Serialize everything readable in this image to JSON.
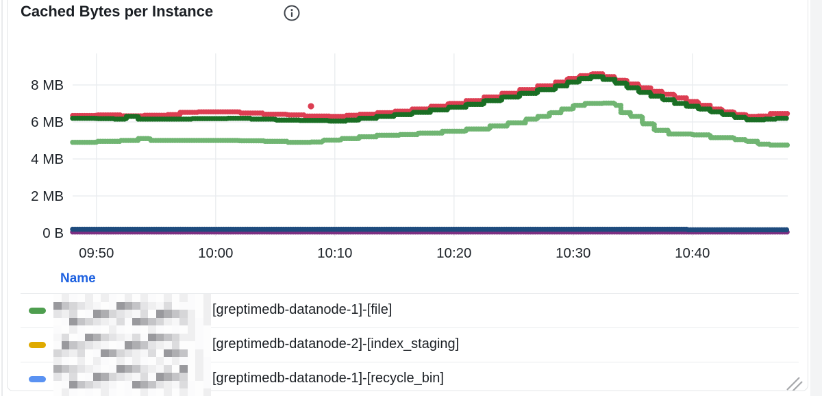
{
  "panel": {
    "title": "Cached Bytes per Instance"
  },
  "chart_data": {
    "type": "line",
    "title": "Cached Bytes per Instance",
    "interpolation": "step-after-dotted",
    "grid": true,
    "x": {
      "start_time": "09:48",
      "end_time": "10:48",
      "unit": "minutes from 09:48",
      "ticks": [
        {
          "label": "09:50",
          "t": 2
        },
        {
          "label": "10:00",
          "t": 12
        },
        {
          "label": "10:10",
          "t": 22
        },
        {
          "label": "10:20",
          "t": 32
        },
        {
          "label": "10:30",
          "t": 42
        },
        {
          "label": "10:40",
          "t": 52
        }
      ]
    },
    "y": {
      "unit": "MB",
      "ylim": [
        0,
        9.7
      ],
      "ticks": [
        {
          "label": "0 B",
          "v": 0
        },
        {
          "label": "2 MB",
          "v": 2
        },
        {
          "label": "4 MB",
          "v": 4
        },
        {
          "label": "6 MB",
          "v": 6
        },
        {
          "label": "8 MB",
          "v": 8
        }
      ]
    },
    "series": [
      {
        "id": "red",
        "color": "#dc3e52",
        "points": [
          [
            0,
            6.35
          ],
          [
            2,
            6.38
          ],
          [
            4,
            6.33
          ],
          [
            6,
            6.36
          ],
          [
            8,
            6.4
          ],
          [
            9,
            6.52
          ],
          [
            10.5,
            6.55
          ],
          [
            13,
            6.55
          ],
          [
            14,
            6.48
          ],
          [
            16,
            6.42
          ],
          [
            18,
            6.38
          ],
          [
            19.5,
            6.32
          ],
          [
            21.5,
            6.3
          ],
          [
            23,
            6.36
          ],
          [
            24,
            6.42
          ],
          [
            25.5,
            6.5
          ],
          [
            27,
            6.58
          ],
          [
            28.5,
            6.7
          ],
          [
            30,
            6.85
          ],
          [
            31.5,
            7.0
          ],
          [
            33,
            7.15
          ],
          [
            34.5,
            7.35
          ],
          [
            36,
            7.55
          ],
          [
            37.5,
            7.75
          ],
          [
            39,
            7.95
          ],
          [
            40.5,
            8.15
          ],
          [
            41.5,
            8.35
          ],
          [
            42.5,
            8.5
          ],
          [
            43.5,
            8.6
          ],
          [
            44.5,
            8.45
          ],
          [
            45.5,
            8.25
          ],
          [
            46.5,
            8.05
          ],
          [
            47.5,
            7.85
          ],
          [
            48.5,
            7.65
          ],
          [
            49.5,
            7.5
          ],
          [
            50.5,
            7.3
          ],
          [
            51.5,
            7.1
          ],
          [
            52.5,
            6.9
          ],
          [
            53.5,
            6.7
          ],
          [
            54.5,
            6.55
          ],
          [
            55.5,
            6.4
          ],
          [
            56.5,
            6.3
          ],
          [
            57.5,
            6.32
          ],
          [
            58.5,
            6.45
          ],
          [
            60,
            6.5
          ]
        ]
      },
      {
        "id": "dark-green",
        "color": "#1a6e24",
        "points": [
          [
            0,
            6.2
          ],
          [
            2,
            6.18
          ],
          [
            3.5,
            6.15
          ],
          [
            4.5,
            6.3
          ],
          [
            5.5,
            6.15
          ],
          [
            8,
            6.15
          ],
          [
            10,
            6.18
          ],
          [
            13,
            6.2
          ],
          [
            15,
            6.15
          ],
          [
            17,
            6.1
          ],
          [
            19,
            6.08
          ],
          [
            21.5,
            6.05
          ],
          [
            23,
            6.1
          ],
          [
            24,
            6.2
          ],
          [
            25.5,
            6.3
          ],
          [
            27,
            6.4
          ],
          [
            28.5,
            6.52
          ],
          [
            30,
            6.65
          ],
          [
            31.5,
            6.8
          ],
          [
            33,
            6.95
          ],
          [
            34.5,
            7.15
          ],
          [
            36,
            7.35
          ],
          [
            37.5,
            7.55
          ],
          [
            39,
            7.75
          ],
          [
            40.5,
            7.95
          ],
          [
            41.5,
            8.15
          ],
          [
            42.5,
            8.35
          ],
          [
            43.5,
            8.45
          ],
          [
            44.5,
            8.3
          ],
          [
            45.5,
            8.1
          ],
          [
            46.5,
            7.85
          ],
          [
            47.5,
            7.6
          ],
          [
            48.5,
            7.4
          ],
          [
            49.5,
            7.2
          ],
          [
            50.5,
            7.0
          ],
          [
            51.5,
            6.85
          ],
          [
            52.5,
            6.7
          ],
          [
            53.5,
            6.55
          ],
          [
            54.5,
            6.4
          ],
          [
            55.5,
            6.25
          ],
          [
            56.5,
            6.12
          ],
          [
            58,
            6.15
          ],
          [
            59,
            6.2
          ],
          [
            60,
            6.2
          ]
        ]
      },
      {
        "id": "light-green",
        "color": "#70b572",
        "points": [
          [
            0,
            4.9
          ],
          [
            2,
            4.95
          ],
          [
            4,
            5.0
          ],
          [
            5.5,
            5.1
          ],
          [
            6.5,
            5.0
          ],
          [
            9,
            5.0
          ],
          [
            12,
            5.0
          ],
          [
            14,
            4.98
          ],
          [
            16,
            4.95
          ],
          [
            18,
            4.9
          ],
          [
            20,
            4.92
          ],
          [
            21,
            5.02
          ],
          [
            22.5,
            5.1
          ],
          [
            24,
            5.2
          ],
          [
            25.5,
            5.28
          ],
          [
            27.5,
            5.32
          ],
          [
            29,
            5.4
          ],
          [
            31,
            5.5
          ],
          [
            33,
            5.62
          ],
          [
            35,
            5.78
          ],
          [
            36.5,
            5.95
          ],
          [
            38,
            6.15
          ],
          [
            39,
            6.3
          ],
          [
            40,
            6.5
          ],
          [
            41,
            6.7
          ],
          [
            42,
            6.9
          ],
          [
            43,
            7.0
          ],
          [
            44.5,
            7.02
          ],
          [
            45.5,
            6.9
          ],
          [
            46,
            6.5
          ],
          [
            46.8,
            6.3
          ],
          [
            47.8,
            5.9
          ],
          [
            48.8,
            5.55
          ],
          [
            50,
            5.35
          ],
          [
            52,
            5.3
          ],
          [
            53.5,
            5.15
          ],
          [
            55.5,
            5.05
          ],
          [
            56.5,
            4.95
          ],
          [
            57.5,
            4.8
          ],
          [
            58.5,
            4.75
          ],
          [
            60,
            4.78
          ]
        ]
      },
      {
        "id": "purple",
        "color": "#7c2f82",
        "points": [
          [
            0,
            0.05
          ],
          [
            60,
            0.05
          ]
        ]
      },
      {
        "id": "navy-blue",
        "color": "#1e4b7d",
        "points": [
          [
            0,
            0.2
          ],
          [
            51.5,
            0.2
          ],
          [
            51.6,
            0.17
          ],
          [
            60,
            0.17
          ]
        ]
      }
    ],
    "outlier_point": {
      "series": "red",
      "t": 20,
      "v": 6.85,
      "color": "#dc3e52"
    }
  },
  "legend": {
    "header": "Name",
    "rows": [
      {
        "swatch_color": "#4e9e4f",
        "name_redacted": true,
        "label": "[greptimedb-datanode-1]-[file]"
      },
      {
        "swatch_color": "#dfaa00",
        "name_redacted": true,
        "label": "[greptimedb-datanode-2]-[index_staging]"
      },
      {
        "swatch_color": "#5a92f2",
        "name_redacted": true,
        "label": "[greptimedb-datanode-1]-[recycle_bin]"
      }
    ]
  },
  "colors": {
    "grid": "#ebedf0",
    "axis_text": "#1e2329",
    "legend_header": "#1f62e0",
    "panel_border": "#e3e5e7",
    "resize_handle": "#a5a7aa"
  }
}
